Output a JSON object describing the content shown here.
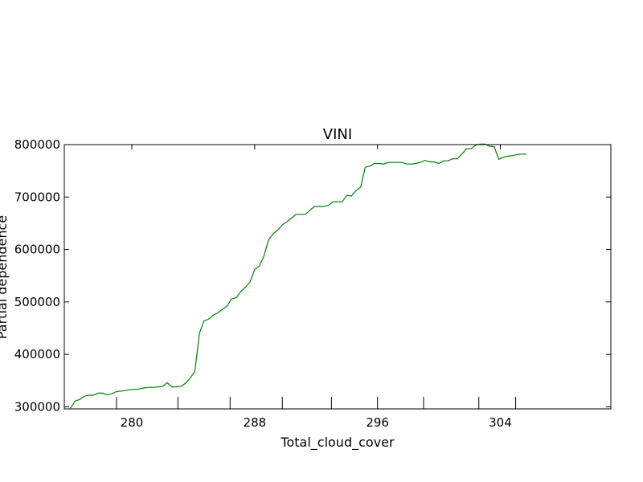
{
  "chart_data": {
    "type": "line",
    "title": "VINI",
    "xlabel": "Total_cloud_cover",
    "ylabel": "Partial dependence",
    "xlim": [
      275.6,
      311.2
    ],
    "ylim": [
      296000,
      800000
    ],
    "xticks": [
      280,
      288,
      296,
      304
    ],
    "xtick_labels": [
      "280",
      "288",
      "296",
      "304"
    ],
    "yticks": [
      300000,
      400000,
      500000,
      600000,
      700000,
      800000
    ],
    "ytick_labels": [
      "300000",
      "400000",
      "500000",
      "600000",
      "700000",
      "800000"
    ],
    "rug": [
      279.0,
      283.0,
      286.4,
      289.8,
      293.0,
      296.0,
      299.0,
      302.6,
      305.0
    ],
    "grid": false,
    "series": [
      {
        "color": "#007f00",
        "x": [
          276.0,
          276.3,
          276.6,
          276.9,
          277.2,
          277.5,
          277.8,
          278.1,
          278.4,
          278.7,
          279.0,
          279.3,
          279.6,
          279.9,
          280.2,
          280.5,
          280.8,
          281.1,
          281.4,
          281.7,
          282.0,
          282.3,
          282.6,
          282.9,
          283.2,
          283.5,
          283.8,
          284.1,
          284.4,
          284.7,
          285.0,
          285.3,
          285.6,
          285.9,
          286.2,
          286.5,
          286.8,
          287.1,
          287.4,
          287.7,
          288.0,
          288.3,
          288.6,
          288.9,
          289.2,
          289.5,
          289.8,
          290.1,
          290.4,
          290.7,
          291.0,
          291.3,
          291.6,
          291.9,
          292.2,
          292.5,
          292.8,
          293.1,
          293.4,
          293.7,
          294.0,
          294.3,
          294.6,
          294.9,
          295.2,
          295.5,
          295.8,
          296.1,
          296.4,
          296.7,
          297.0,
          297.3,
          297.6,
          297.9,
          298.2,
          298.5,
          298.8,
          299.1,
          299.4,
          299.7,
          300.0,
          300.3,
          300.6,
          300.9,
          301.2,
          301.5,
          301.8,
          302.1,
          302.4,
          302.7,
          303.0,
          303.3,
          303.6,
          303.9,
          304.2,
          304.5,
          304.8,
          305.1,
          305.4,
          305.7
        ],
        "y": [
          297000,
          311000,
          314000,
          320000,
          322000,
          322000,
          326000,
          326000,
          323000,
          325000,
          329000,
          330000,
          331000,
          333000,
          333000,
          334000,
          336000,
          337000,
          337000,
          338000,
          339000,
          346000,
          338000,
          338000,
          339000,
          345000,
          355000,
          367000,
          440000,
          464000,
          467000,
          475000,
          479000,
          486000,
          492000,
          506000,
          508000,
          520000,
          528000,
          538000,
          562000,
          568000,
          587000,
          618000,
          630000,
          637000,
          647000,
          653000,
          660000,
          667000,
          667000,
          667000,
          675000,
          682000,
          682000,
          682000,
          684000,
          691000,
          691000,
          691000,
          703000,
          702000,
          712000,
          719000,
          757000,
          759000,
          764000,
          764000,
          763000,
          766000,
          766000,
          766000,
          766000,
          763000,
          763000,
          764000,
          766000,
          770000,
          767000,
          767000,
          764000,
          769000,
          769000,
          773000,
          773000,
          782000,
          792000,
          792000,
          799000,
          801000,
          801000,
          797000,
          796000,
          772000,
          776000,
          778000,
          779000,
          781000,
          782000,
          782000
        ]
      }
    ]
  }
}
